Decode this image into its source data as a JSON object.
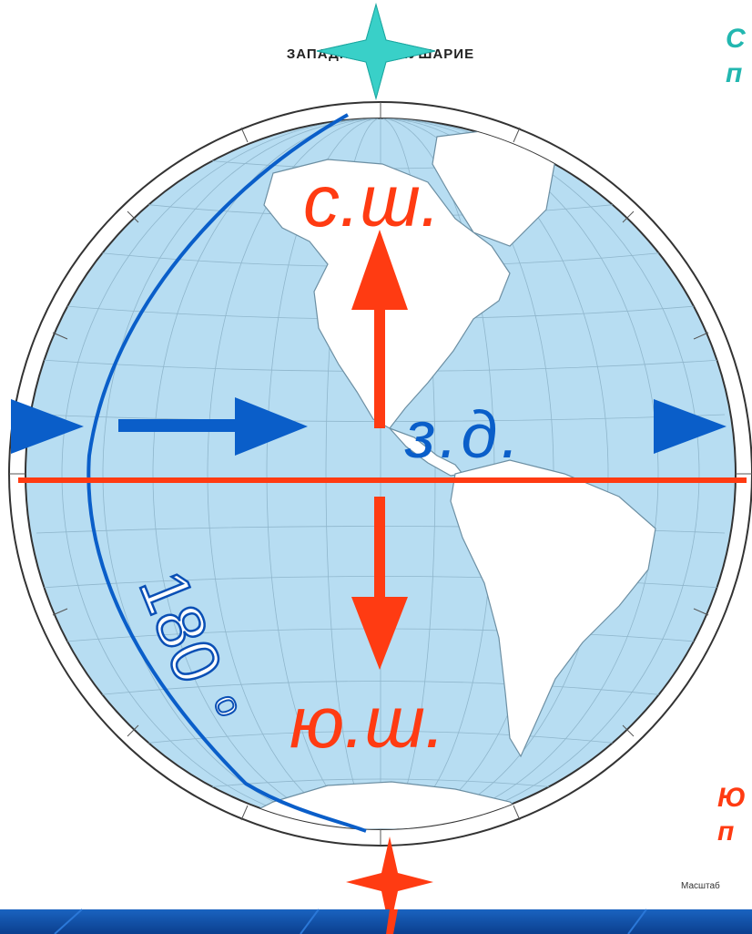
{
  "map": {
    "title": "ЗАПАДНОЕ ПОЛУШАРИЕ",
    "north_label": "с.ш.",
    "south_label": "ю.ш.",
    "west_label": "з.д.",
    "degree_label": "180",
    "degree_symbol": "o",
    "side_text_top_1": "С",
    "side_text_top_2": "п",
    "side_text_bottom_1": "Ю",
    "side_text_bottom_2": "п",
    "scale_text": "Масштаб",
    "colors": {
      "ocean": "#b7ddf2",
      "land": "#ffffff",
      "red_arrow": "#ff3b12",
      "blue": "#0a5ec9",
      "teal_star": "#39d0c8",
      "teal_text": "#22b7b0",
      "footer": "#0b4ea3"
    }
  }
}
